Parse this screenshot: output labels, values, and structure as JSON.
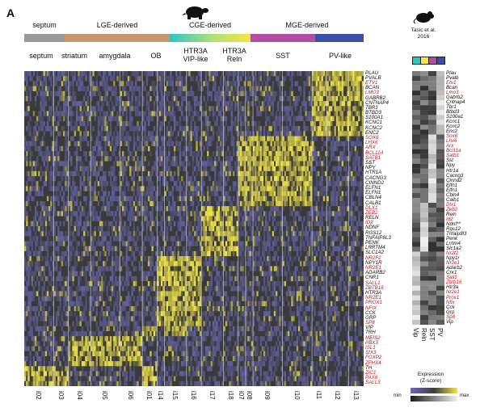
{
  "panel_letter": "A",
  "regions": [
    {
      "name": "septum",
      "color": "#9a9a9a"
    },
    {
      "name": "LGE-derived",
      "color": "#c8966a"
    },
    {
      "name": "CGE-derived",
      "color": "gradient-teal-yellow"
    },
    {
      "name": "MGE-derived",
      "color": "#b04fa0"
    },
    {
      "name": "",
      "color": "#3b4fa8"
    }
  ],
  "groups": [
    "septum",
    "striatum",
    "amygdala",
    "OB",
    "HTR3A\nVIP-like",
    "HTR3A\nReln",
    "SST",
    "PV-like"
  ],
  "clusters": [
    "i02",
    "i03",
    "i04",
    "i05",
    "i06",
    "i01",
    "i14",
    "i15",
    "i16",
    "i17",
    "i18",
    "i07",
    "i08",
    "i09",
    "i10",
    "i11",
    "i12",
    "i13"
  ],
  "genes": [
    {
      "name": "PLAU",
      "red": false
    },
    {
      "name": "PVALB",
      "red": false
    },
    {
      "name": "ETV1",
      "red": true
    },
    {
      "name": "BCAN",
      "red": false
    },
    {
      "name": "LMO3",
      "red": true
    },
    {
      "name": "GABRB2",
      "red": false
    },
    {
      "name": "CNTNAP4",
      "red": false
    },
    {
      "name": "TBR1",
      "red": false
    },
    {
      "name": "BTBD3",
      "red": false
    },
    {
      "name": "S100A1",
      "red": false
    },
    {
      "name": "KCNC1",
      "red": false
    },
    {
      "name": "KCNC2",
      "red": false
    },
    {
      "name": "ENC2",
      "red": false
    },
    {
      "name": "SOX6",
      "red": true
    },
    {
      "name": "LHX6",
      "red": true
    },
    {
      "name": "ARX",
      "red": true
    },
    {
      "name": "BCL11A",
      "red": true
    },
    {
      "name": "SATB1",
      "red": true
    },
    {
      "name": "SST",
      "red": false
    },
    {
      "name": "NPY",
      "red": false
    },
    {
      "name": "HTR1A",
      "red": false
    },
    {
      "name": "CACNG3",
      "red": false
    },
    {
      "name": "CINND2",
      "red": false
    },
    {
      "name": "ELFN1",
      "red": false
    },
    {
      "name": "ELFN1",
      "red": false
    },
    {
      "name": "CBLN4",
      "red": false
    },
    {
      "name": "CALB1",
      "red": false
    },
    {
      "name": "DLX1",
      "red": true
    },
    {
      "name": "ZEB2",
      "red": true
    },
    {
      "name": "RELN",
      "red": false
    },
    {
      "name": "ID2",
      "red": true
    },
    {
      "name": "NDNF",
      "red": false
    },
    {
      "name": "RGS12",
      "red": false
    },
    {
      "name": "TNFAIP8L3",
      "red": false
    },
    {
      "name": "PENK",
      "red": false
    },
    {
      "name": "LRRTM4",
      "red": false
    },
    {
      "name": "SLC1A2",
      "red": false
    },
    {
      "name": "NR2F2",
      "red": true
    },
    {
      "name": "NPY1R",
      "red": false
    },
    {
      "name": "NR2E1",
      "red": true
    },
    {
      "name": "ADARB2",
      "red": false
    },
    {
      "name": "CNR1",
      "red": false
    },
    {
      "name": "SALL1",
      "red": true
    },
    {
      "name": "ZBTB16",
      "red": true
    },
    {
      "name": "HTR3A",
      "red": false
    },
    {
      "name": "NR2E1",
      "red": true
    },
    {
      "name": "PROX1",
      "red": true
    },
    {
      "name": "NFIX",
      "red": true
    },
    {
      "name": "CCK",
      "red": false
    },
    {
      "name": "GRP",
      "red": false
    },
    {
      "name": "SP8",
      "red": true
    },
    {
      "name": "VIP",
      "red": false
    },
    {
      "name": "TRH",
      "red": false
    },
    {
      "name": "MEIS2",
      "red": true
    },
    {
      "name": "PBX3",
      "red": true
    },
    {
      "name": "ISL1",
      "red": true
    },
    {
      "name": "SIX3",
      "red": true
    },
    {
      "name": "FOXP2",
      "red": true
    },
    {
      "name": "ZFHX4",
      "red": true
    },
    {
      "name": "TH",
      "red": false
    },
    {
      "name": "ZIC1",
      "red": true
    },
    {
      "name": "PAX6",
      "red": true
    },
    {
      "name": "SALL3",
      "red": true
    }
  ],
  "mouse_genes": [
    {
      "name": "Plau",
      "red": false
    },
    {
      "name": "Pvalb",
      "red": false
    },
    {
      "name": "Etv1",
      "red": true
    },
    {
      "name": "Bcan",
      "red": false
    },
    {
      "name": "Lmo3",
      "red": true
    },
    {
      "name": "Gabrb2",
      "red": false
    },
    {
      "name": "Cntnap4",
      "red": false
    },
    {
      "name": "Tbr1",
      "red": false
    },
    {
      "name": "Btbd3",
      "red": false
    },
    {
      "name": "S100a1",
      "red": false
    },
    {
      "name": "Kcnc1",
      "red": false
    },
    {
      "name": "Kcnc2",
      "red": false
    },
    {
      "name": "Enc2",
      "red": false
    },
    {
      "name": "Sox6",
      "red": true
    },
    {
      "name": "Lhx6",
      "red": true
    },
    {
      "name": "Arx",
      "red": true
    },
    {
      "name": "Bcl11a",
      "red": true
    },
    {
      "name": "Satb1",
      "red": true
    },
    {
      "name": "Sst",
      "red": false
    },
    {
      "name": "Npy",
      "red": false
    },
    {
      "name": "Htr1a",
      "red": false
    },
    {
      "name": "Cacng3",
      "red": false
    },
    {
      "name": "Cinnd2",
      "red": false
    },
    {
      "name": "Elfn1",
      "red": false
    },
    {
      "name": "Elfn1",
      "red": false
    },
    {
      "name": "Cbln4",
      "red": false
    },
    {
      "name": "Calb1",
      "red": false
    },
    {
      "name": "Dlx1",
      "red": true
    },
    {
      "name": "Zeb2",
      "red": true
    },
    {
      "name": "Reln",
      "red": false
    },
    {
      "name": "Id2",
      "red": true
    },
    {
      "name": "Ndnf**",
      "red": false
    },
    {
      "name": "Rgs12",
      "red": false
    },
    {
      "name": "Tnfaip8l3",
      "red": false
    },
    {
      "name": "Penk",
      "red": false
    },
    {
      "name": "Lrrtm4",
      "red": false
    },
    {
      "name": "Slc1a2",
      "red": false
    },
    {
      "name": "Nr2f2",
      "red": true
    },
    {
      "name": "Npy1r",
      "red": false
    },
    {
      "name": "Nr2e1",
      "red": true
    },
    {
      "name": "Adarb2",
      "red": false
    },
    {
      "name": "Cnr1",
      "red": false
    },
    {
      "name": "Sall1",
      "red": true
    },
    {
      "name": "Zbtb16",
      "red": true
    },
    {
      "name": "Htr3a",
      "red": false
    },
    {
      "name": "Nr2e1",
      "red": true
    },
    {
      "name": "Prox1",
      "red": true
    },
    {
      "name": "Nfix",
      "red": true
    },
    {
      "name": "Cck",
      "red": false
    },
    {
      "name": "Grp",
      "red": false
    },
    {
      "name": "Sp8",
      "red": true
    },
    {
      "name": "Vip",
      "red": false
    }
  ],
  "tasic": {
    "title": "Tasic et al.\n2016",
    "columns": [
      "Vip",
      "Reln",
      "SST",
      "PV"
    ],
    "column_colors": [
      "#2ec4c4",
      "#f5e642",
      "#b04fa0",
      "#3b4fa8"
    ]
  },
  "legend": {
    "title": "Expression\n(Z-score)",
    "min_label": "min",
    "max_label": "max"
  },
  "colors": {
    "low": "#6b6ab8",
    "mid": "#3a3a3a",
    "high": "#f2e64a",
    "gray_low": "#1a1a1a",
    "gray_high": "#f0f0f0",
    "red_gene": "#c01a1a"
  },
  "chart_data": {
    "type": "heatmap",
    "title": "",
    "x_groups": [
      "septum",
      "striatum",
      "amygdala",
      "OB",
      "HTR3A VIP-like",
      "HTR3A Reln",
      "SST",
      "PV-like"
    ],
    "x_clusters": [
      "i02",
      "i03",
      "i04",
      "i05",
      "i06",
      "i01",
      "i14",
      "i15",
      "i16",
      "i17",
      "i18",
      "i07",
      "i08",
      "i09",
      "i10",
      "i11",
      "i12",
      "i13"
    ],
    "cluster_widths": [
      4,
      2,
      3,
      4,
      3,
      2,
      1,
      3,
      2,
      3,
      2,
      1,
      1,
      4,
      4,
      2,
      3,
      2
    ],
    "gene_blocks": [
      {
        "genes": [
          0,
          12
        ],
        "high_clusters": [
          15,
          16,
          17
        ]
      },
      {
        "genes": [
          13,
          26
        ],
        "high_clusters": [
          11,
          12,
          13,
          14
        ]
      },
      {
        "genes": [
          27,
          36
        ],
        "high_clusters": [
          9,
          10
        ]
      },
      {
        "genes": [
          37,
          50
        ],
        "high_clusters": [
          6,
          7,
          8
        ]
      },
      {
        "genes": [
          51,
          52
        ],
        "high_clusters": [
          5,
          7
        ]
      },
      {
        "genes": [
          53,
          58
        ],
        "high_clusters": [
          2,
          3,
          4
        ]
      },
      {
        "genes": [
          59,
          62
        ],
        "high_clusters": [
          0,
          1,
          5
        ]
      }
    ],
    "scale": "z-score"
  }
}
